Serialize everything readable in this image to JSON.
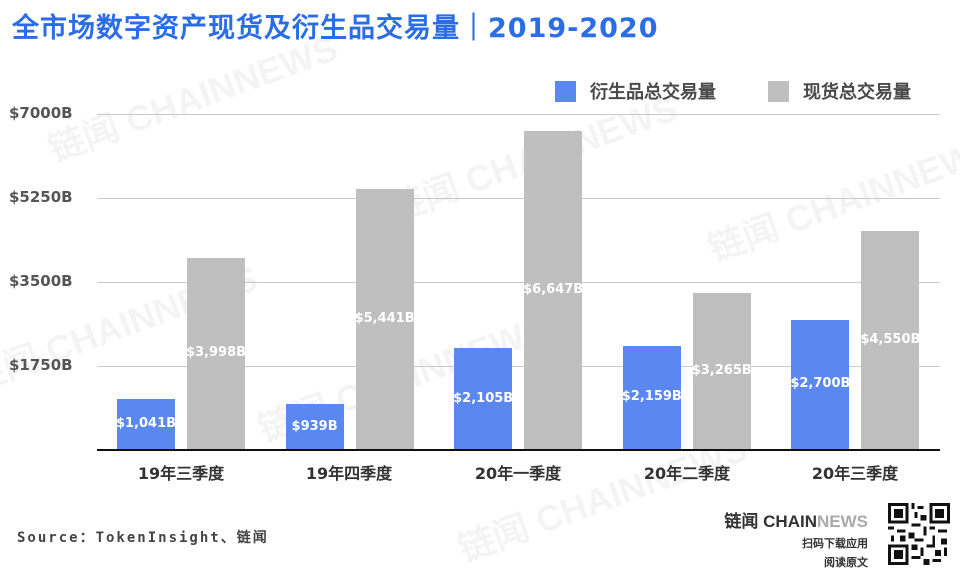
{
  "title": "全市场数字资产现货及衍生品交易量｜2019-2020",
  "legend": [
    {
      "label": "衍生品总交易量",
      "color": "#5b87f0"
    },
    {
      "label": "现货总交易量",
      "color": "#bfbfbf"
    }
  ],
  "y_ticks": [
    "$7000B",
    "$5250B",
    "$3500B",
    "$1750B"
  ],
  "categories": [
    "19年三季度",
    "19年四季度",
    "20年一季度",
    "20年二季度",
    "20年三季度"
  ],
  "bar_labels": {
    "derivatives": [
      "$1,041B",
      "$939B",
      "$2,105B",
      "$2,159B",
      "$2,700B"
    ],
    "spot": [
      "$3,998B",
      "$5,441B",
      "$6,647B",
      "$3,265B",
      "$4,550B"
    ]
  },
  "source": "Source：TokenInsight、链闻",
  "brand": {
    "logo_cn": "链闻 ",
    "logo_chain": "CHAIN",
    "logo_news": "NEWS",
    "line1": "扫码下载应用",
    "line2": "阅读原文"
  },
  "watermark": "链闻 CHAINNEWS",
  "chart_data": {
    "type": "bar",
    "title": "全市场数字资产现货及衍生品交易量｜2019-2020",
    "xlabel": "",
    "ylabel": "",
    "categories": [
      "19年三季度",
      "19年四季度",
      "20年一季度",
      "20年二季度",
      "20年三季度"
    ],
    "series": [
      {
        "name": "衍生品总交易量",
        "color": "#5b87f0",
        "values": [
          1041,
          939,
          2105,
          2159,
          2700
        ]
      },
      {
        "name": "现货总交易量",
        "color": "#bfbfbf",
        "values": [
          3998,
          5441,
          6647,
          3265,
          4550
        ]
      }
    ],
    "unit": "$B",
    "ylim": [
      0,
      7000
    ],
    "yticks": [
      1750,
      3500,
      5250,
      7000
    ],
    "grid": true,
    "legend_position": "top-right"
  }
}
